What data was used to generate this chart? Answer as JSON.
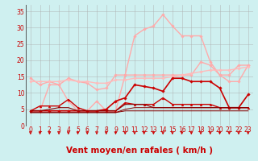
{
  "xlabel": "Vent moyen/en rafales ( km/h )",
  "xlabel_color": "#cc0000",
  "bg_color": "#cff0f0",
  "grid_color": "#aaaaaa",
  "xlim": [
    -0.5,
    23.5
  ],
  "ylim": [
    0,
    37
  ],
  "yticks": [
    0,
    5,
    10,
    15,
    20,
    25,
    30,
    35
  ],
  "xticks": [
    0,
    1,
    2,
    3,
    4,
    5,
    6,
    7,
    8,
    9,
    10,
    11,
    12,
    13,
    14,
    15,
    16,
    17,
    18,
    19,
    20,
    21,
    22,
    23
  ],
  "x": [
    0,
    1,
    2,
    3,
    4,
    5,
    6,
    7,
    8,
    9,
    10,
    11,
    12,
    13,
    14,
    15,
    16,
    17,
    18,
    19,
    20,
    21,
    22,
    23
  ],
  "series": [
    {
      "y": [
        4.5,
        4.5,
        12.5,
        12.5,
        7.5,
        4.5,
        4.5,
        7.5,
        4.5,
        4.5,
        15.5,
        27.5,
        29.5,
        30.5,
        34.0,
        30.5,
        27.5,
        27.5,
        27.5,
        19.5,
        15.5,
        13.5,
        13.5,
        18.5
      ],
      "color": "#ffaaaa",
      "lw": 1.0,
      "marker": "D",
      "ms": 1.8
    },
    {
      "y": [
        14.5,
        12.5,
        13.5,
        12.5,
        14.5,
        13.5,
        13.0,
        11.0,
        11.5,
        15.5,
        15.5,
        15.5,
        15.5,
        15.5,
        15.5,
        15.5,
        15.5,
        15.5,
        19.5,
        18.5,
        15.5,
        15.5,
        18.5,
        18.5
      ],
      "color": "#ffaaaa",
      "lw": 1.0,
      "marker": "D",
      "ms": 1.8
    },
    {
      "y": [
        13.5,
        13.5,
        13.5,
        13.5,
        14.0,
        13.5,
        13.5,
        13.0,
        13.0,
        14.0,
        14.0,
        14.5,
        14.5,
        14.5,
        14.5,
        15.0,
        15.5,
        16.0,
        16.5,
        17.0,
        17.0,
        17.0,
        17.5,
        18.0
      ],
      "color": "#ffbbbb",
      "lw": 1.0,
      "marker": "D",
      "ms": 1.8
    },
    {
      "y": [
        4.5,
        4.5,
        4.5,
        4.5,
        4.5,
        4.5,
        4.5,
        4.5,
        5.0,
        7.5,
        8.5,
        12.5,
        12.0,
        11.5,
        10.5,
        14.5,
        14.5,
        13.5,
        13.5,
        13.5,
        11.5,
        5.5,
        5.5,
        9.5
      ],
      "color": "#cc0000",
      "lw": 1.2,
      "marker": "D",
      "ms": 1.8
    },
    {
      "y": [
        4.5,
        6.0,
        6.0,
        6.0,
        8.0,
        5.5,
        4.5,
        4.5,
        4.5,
        4.5,
        7.0,
        6.5,
        6.5,
        6.5,
        8.5,
        6.5,
        6.5,
        6.5,
        6.5,
        6.5,
        5.5,
        5.5,
        5.5,
        5.5
      ],
      "color": "#cc0000",
      "lw": 1.0,
      "marker": "^",
      "ms": 2.0
    },
    {
      "y": [
        4.5,
        4.5,
        5.0,
        5.5,
        5.5,
        4.5,
        4.5,
        4.5,
        4.5,
        4.5,
        6.5,
        6.5,
        6.5,
        5.5,
        5.5,
        5.5,
        5.5,
        5.5,
        5.5,
        5.5,
        5.5,
        5.5,
        5.5,
        5.5
      ],
      "color": "#880000",
      "lw": 0.8,
      "marker": null,
      "ms": 0
    },
    {
      "y": [
        4.0,
        4.0,
        4.0,
        4.0,
        4.0,
        4.0,
        4.0,
        4.0,
        4.0,
        4.0,
        4.5,
        4.5,
        4.5,
        4.5,
        4.5,
        4.5,
        4.5,
        4.5,
        4.5,
        4.5,
        4.5,
        4.5,
        4.5,
        4.5
      ],
      "color": "#880000",
      "lw": 0.7,
      "marker": null,
      "ms": 0
    },
    {
      "y": [
        4.0,
        4.0,
        4.0,
        4.0,
        4.0,
        4.0,
        4.0,
        4.0,
        4.0,
        4.0,
        5.0,
        5.5,
        5.5,
        5.5,
        5.5,
        5.5,
        5.5,
        5.5,
        5.5,
        5.5,
        5.5,
        5.5,
        5.5,
        5.5
      ],
      "color": "#880000",
      "lw": 0.7,
      "marker": null,
      "ms": 0
    }
  ],
  "arrows_color": "#cc0000",
  "tick_color": "#cc0000",
  "tick_fontsize": 5.5,
  "xlabel_fontsize": 7.5,
  "left_spine_color": "#555555"
}
